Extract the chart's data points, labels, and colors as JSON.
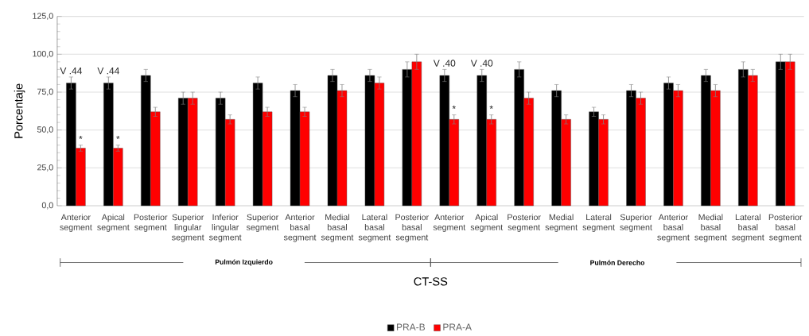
{
  "chart_data": {
    "type": "bar",
    "xlabel": "CT-SS",
    "ylabel": "Porcentaje",
    "categories": [
      "Anterior segment",
      "Apical segment",
      "Posterior segment",
      "Superior lingular segment",
      "Inferior lingular segment",
      "Superior segment",
      "Anterior basal segment",
      "Medial basal segment",
      "Lateral basal segment",
      "Posterior basal segment",
      "Anterior segment",
      "Apical segment",
      "Posterior segment",
      "Medial segment",
      "Lateral segment",
      "Superior segment",
      "Anterior basal segment",
      "Medial basal segment",
      "Lateral basal segment",
      "Posterior basal segment"
    ],
    "series": [
      {
        "name": "PRA-B",
        "color": "#000000",
        "values": [
          81,
          81,
          86,
          71,
          71,
          81,
          76,
          86,
          86,
          90,
          86,
          86,
          90,
          76,
          62,
          76,
          81,
          86,
          90,
          95
        ],
        "errors": [
          4,
          4,
          4,
          4,
          4,
          4,
          4,
          4,
          4,
          5,
          4,
          4,
          5,
          4,
          3,
          4,
          4,
          4,
          5,
          5
        ],
        "value_labels": [
          "V .44",
          "V .44",
          null,
          null,
          null,
          null,
          null,
          null,
          null,
          null,
          "V .40",
          "V .40",
          null,
          null,
          null,
          null,
          null,
          null,
          null,
          null
        ]
      },
      {
        "name": "PRA-A",
        "color": "#ff0000",
        "values": [
          38,
          38,
          62,
          71,
          57,
          62,
          62,
          76,
          81,
          95,
          57,
          57,
          71,
          57,
          57,
          71,
          76,
          76,
          86,
          95
        ],
        "errors": [
          2,
          2,
          3,
          4,
          3,
          3,
          3,
          4,
          4,
          5,
          3,
          3,
          4,
          3,
          3,
          4,
          4,
          4,
          4,
          5
        ],
        "value_labels": [
          "*",
          "*",
          null,
          null,
          null,
          null,
          null,
          null,
          null,
          null,
          "*",
          "*",
          null,
          null,
          null,
          null,
          null,
          null,
          null,
          null
        ]
      }
    ],
    "ylim": [
      0,
      125
    ],
    "yticks": [
      {
        "value": 0,
        "label": "0,0"
      },
      {
        "value": 25,
        "label": "25,0"
      },
      {
        "value": 50,
        "label": "50,0"
      },
      {
        "value": 75,
        "label": "75,0"
      },
      {
        "value": 100,
        "label": "100,0"
      },
      {
        "value": 125,
        "label": "125,0"
      }
    ],
    "grid": "y",
    "legend": "bottom",
    "annotations": [
      "Pulmón Izquierdo",
      "Pulmón Derecho"
    ]
  }
}
